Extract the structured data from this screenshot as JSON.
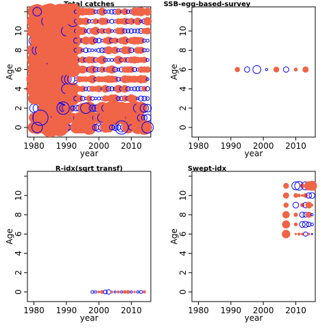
{
  "chart_data": [
    {
      "type": "scatter",
      "title": "Total catches",
      "xlabel": "year",
      "ylabel": "Age",
      "xlim": [
        1978,
        2016
      ],
      "ylim": [
        -1,
        12.5
      ],
      "xticks": [
        1980,
        1990,
        2000,
        2010
      ],
      "yticks": [
        0,
        2,
        4,
        6,
        8,
        10
      ],
      "grid": false,
      "colors": {
        "positive": "#f06448",
        "negative": "#0000ff"
      },
      "x_range": [
        1980,
        2015
      ],
      "ages": [
        0,
        1,
        2,
        3,
        4,
        5,
        6,
        7,
        8,
        9,
        10,
        11,
        12
      ],
      "positive": [
        {
          "x": 1985,
          "y": 0,
          "s": 1.0
        },
        {
          "x": 1988,
          "y": 0,
          "s": 0.9
        },
        {
          "x": 2014,
          "y": 0,
          "s": 0.75
        },
        {
          "x": 1990,
          "y": 1,
          "s": 0.7
        },
        {
          "x": 1983,
          "y": 3,
          "s": 0.85
        },
        {
          "x": 1986,
          "y": 3,
          "s": 0.7
        },
        {
          "x": 1981,
          "y": 4,
          "s": 0.65
        },
        {
          "x": 1984,
          "y": 5,
          "s": 0.7
        },
        {
          "x": 1986,
          "y": 6,
          "s": 0.8
        },
        {
          "x": 1982,
          "y": 7,
          "s": 0.7
        },
        {
          "x": 1984,
          "y": 8,
          "s": 0.75
        },
        {
          "x": 1987,
          "y": 9,
          "s": 0.7
        },
        {
          "x": 1986,
          "y": 11,
          "s": 0.7
        },
        {
          "x": 1989,
          "y": 11,
          "s": 0.6
        },
        {
          "x": 1988,
          "y": 12,
          "s": 0.8
        },
        {
          "x": 2013,
          "y": 12,
          "s": 0.45
        }
      ],
      "negative": [
        {
          "x": 1981,
          "y": 0,
          "s": 0.55
        },
        {
          "x": 2007,
          "y": 0,
          "s": 0.7
        },
        {
          "x": 2015,
          "y": 0,
          "s": 0.6
        },
        {
          "x": 1982,
          "y": 1,
          "s": 0.8
        },
        {
          "x": 1989,
          "y": 2,
          "s": 0.65
        },
        {
          "x": 1996,
          "y": 2,
          "s": 0.55
        },
        {
          "x": 1981,
          "y": 12,
          "s": 0.45
        }
      ]
    },
    {
      "type": "scatter",
      "title": "SSB-egg-based-survey",
      "xlabel": "year",
      "ylabel": "Age",
      "xlim": [
        1978,
        2016
      ],
      "ylim": [
        -1,
        12.5
      ],
      "xticks": [
        1980,
        1990,
        2000,
        2010
      ],
      "yticks": [
        0,
        2,
        4,
        6,
        8,
        10
      ],
      "grid": false,
      "colors": {
        "positive": "#f06448",
        "negative": "#0000ff"
      },
      "points": [
        {
          "x": 1992,
          "y": 6,
          "s": 0.25,
          "sign": "pos"
        },
        {
          "x": 1995,
          "y": 6,
          "s": 0.28,
          "sign": "neg"
        },
        {
          "x": 1998,
          "y": 6,
          "s": 0.42,
          "sign": "neg"
        },
        {
          "x": 2001,
          "y": 6,
          "s": 0.12,
          "sign": "neg"
        },
        {
          "x": 2004,
          "y": 6,
          "s": 0.28,
          "sign": "pos"
        },
        {
          "x": 2007,
          "y": 6,
          "s": 0.28,
          "sign": "neg"
        },
        {
          "x": 2010,
          "y": 6,
          "s": 0.18,
          "sign": "pos"
        },
        {
          "x": 2013,
          "y": 6,
          "s": 0.3,
          "sign": "pos"
        }
      ]
    },
    {
      "type": "scatter",
      "title": "R-idx(sqrt transf)",
      "xlabel": "year",
      "ylabel": "Age",
      "xlim": [
        1978,
        2016
      ],
      "ylim": [
        -1,
        12.5
      ],
      "xticks": [
        1980,
        1990,
        2000,
        2010
      ],
      "yticks": [
        0,
        2,
        4,
        6,
        8,
        10
      ],
      "grid": false,
      "colors": {
        "positive": "#f06448",
        "negative": "#0000ff"
      },
      "points": [
        {
          "x": 1998,
          "y": 0,
          "s": 0.15,
          "sign": "neg"
        },
        {
          "x": 1999,
          "y": 0,
          "s": 0.13,
          "sign": "neg"
        },
        {
          "x": 2000,
          "y": 0,
          "s": 0.12,
          "sign": "pos"
        },
        {
          "x": 2001,
          "y": 0,
          "s": 0.18,
          "sign": "pos"
        },
        {
          "x": 2002,
          "y": 0,
          "s": 0.2,
          "sign": "neg"
        },
        {
          "x": 2003,
          "y": 0,
          "s": 0.24,
          "sign": "neg"
        },
        {
          "x": 2004,
          "y": 0,
          "s": 0.12,
          "sign": "pos"
        },
        {
          "x": 2005,
          "y": 0,
          "s": 0.1,
          "sign": "neg"
        },
        {
          "x": 2006,
          "y": 0,
          "s": 0.14,
          "sign": "pos"
        },
        {
          "x": 2007,
          "y": 0,
          "s": 0.12,
          "sign": "neg"
        },
        {
          "x": 2008,
          "y": 0,
          "s": 0.17,
          "sign": "pos"
        },
        {
          "x": 2009,
          "y": 0,
          "s": 0.18,
          "sign": "pos"
        },
        {
          "x": 2010,
          "y": 0,
          "s": 0.12,
          "sign": "neg"
        },
        {
          "x": 2011,
          "y": 0,
          "s": 0.11,
          "sign": "pos"
        },
        {
          "x": 2012,
          "y": 0,
          "s": 0.12,
          "sign": "neg"
        },
        {
          "x": 2013,
          "y": 0,
          "s": 0.16,
          "sign": "neg"
        },
        {
          "x": 2014,
          "y": 0,
          "s": 0.15,
          "sign": "pos"
        }
      ]
    },
    {
      "type": "scatter",
      "title": "Swept-idx",
      "xlabel": "year",
      "ylabel": "Age",
      "xlim": [
        1978,
        2016
      ],
      "ylim": [
        -1,
        12.5
      ],
      "xticks": [
        1980,
        1990,
        2000,
        2010
      ],
      "yticks": [
        0,
        2,
        4,
        6,
        8,
        10
      ],
      "grid": false,
      "colors": {
        "positive": "#f06448",
        "negative": "#0000ff"
      },
      "years": [
        2007,
        2008,
        2009,
        2010,
        2011,
        2012,
        2013,
        2014,
        2015
      ],
      "points": [
        {
          "x": 2007,
          "y": 6,
          "s": 0.42,
          "sign": "pos"
        },
        {
          "x": 2010,
          "y": 6,
          "s": 0.1,
          "sign": "pos"
        },
        {
          "x": 2011,
          "y": 6,
          "s": 0.14,
          "sign": "pos"
        },
        {
          "x": 2012,
          "y": 6,
          "s": 0.12,
          "sign": "pos"
        },
        {
          "x": 2013,
          "y": 6,
          "s": 0.22,
          "sign": "neg"
        },
        {
          "x": 2014,
          "y": 6,
          "s": 0.13,
          "sign": "pos"
        },
        {
          "x": 2015,
          "y": 6,
          "s": 0.07,
          "sign": "neg"
        },
        {
          "x": 2007,
          "y": 7,
          "s": 0.4,
          "sign": "pos"
        },
        {
          "x": 2010,
          "y": 7,
          "s": 0.18,
          "sign": "pos"
        },
        {
          "x": 2012,
          "y": 7,
          "s": 0.3,
          "sign": "neg"
        },
        {
          "x": 2013,
          "y": 7,
          "s": 0.32,
          "sign": "neg"
        },
        {
          "x": 2014,
          "y": 7,
          "s": 0.24,
          "sign": "neg"
        },
        {
          "x": 2015,
          "y": 7,
          "s": 0.15,
          "sign": "neg"
        },
        {
          "x": 2007,
          "y": 8,
          "s": 0.36,
          "sign": "pos"
        },
        {
          "x": 2010,
          "y": 8,
          "s": 0.2,
          "sign": "pos"
        },
        {
          "x": 2012,
          "y": 8,
          "s": 0.28,
          "sign": "neg"
        },
        {
          "x": 2013,
          "y": 8,
          "s": 0.26,
          "sign": "neg"
        },
        {
          "x": 2014,
          "y": 8,
          "s": 0.3,
          "sign": "pos"
        },
        {
          "x": 2015,
          "y": 8,
          "s": 0.12,
          "sign": "neg"
        },
        {
          "x": 2007,
          "y": 9,
          "s": 0.25,
          "sign": "pos"
        },
        {
          "x": 2010,
          "y": 9,
          "s": 0.3,
          "sign": "neg"
        },
        {
          "x": 2012,
          "y": 9,
          "s": 0.2,
          "sign": "pos"
        },
        {
          "x": 2013,
          "y": 9,
          "s": 0.28,
          "sign": "neg"
        },
        {
          "x": 2014,
          "y": 9,
          "s": 0.33,
          "sign": "pos"
        },
        {
          "x": 2015,
          "y": 9,
          "s": 0.12,
          "sign": "pos"
        },
        {
          "x": 2007,
          "y": 10,
          "s": 0.3,
          "sign": "pos"
        },
        {
          "x": 2010,
          "y": 10,
          "s": 0.22,
          "sign": "pos"
        },
        {
          "x": 2011,
          "y": 10,
          "s": 0.16,
          "sign": "pos"
        },
        {
          "x": 2012,
          "y": 10,
          "s": 0.12,
          "sign": "pos"
        },
        {
          "x": 2013,
          "y": 10,
          "s": 0.22,
          "sign": "pos"
        },
        {
          "x": 2014,
          "y": 10,
          "s": 0.28,
          "sign": "neg"
        },
        {
          "x": 2015,
          "y": 10,
          "s": 0.3,
          "sign": "neg"
        },
        {
          "x": 2007,
          "y": 11,
          "s": 0.28,
          "sign": "pos"
        },
        {
          "x": 2010,
          "y": 11,
          "s": 0.42,
          "sign": "neg"
        },
        {
          "x": 2011,
          "y": 11,
          "s": 0.45,
          "sign": "neg"
        },
        {
          "x": 2012,
          "y": 11,
          "s": 0.22,
          "sign": "pos"
        },
        {
          "x": 2013,
          "y": 11,
          "s": 0.42,
          "sign": "neg"
        },
        {
          "x": 2014,
          "y": 11,
          "s": 0.45,
          "sign": "pos"
        },
        {
          "x": 2015,
          "y": 11,
          "s": 0.5,
          "sign": "pos"
        }
      ]
    }
  ]
}
